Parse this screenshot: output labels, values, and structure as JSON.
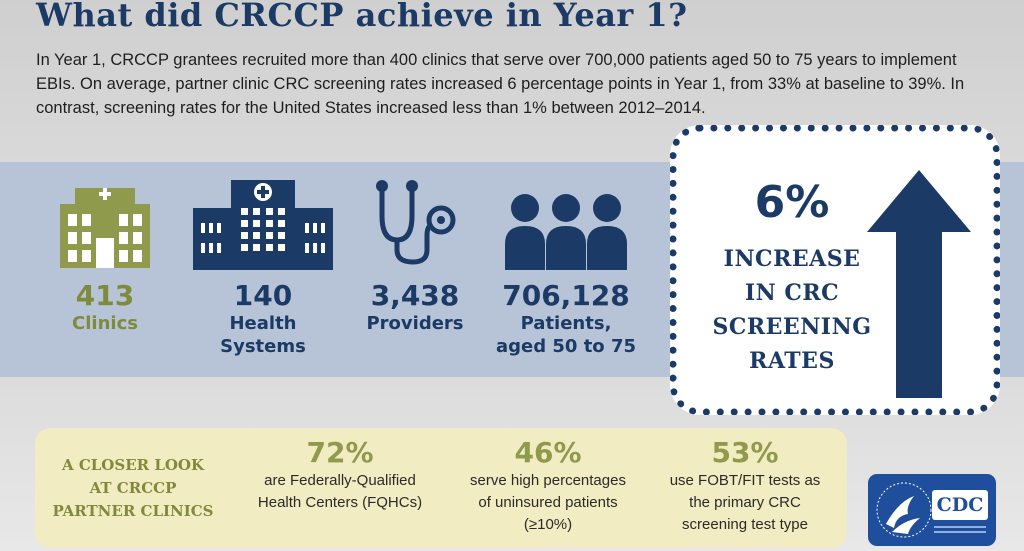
{
  "header": {
    "title": "What did CRCCP achieve in Year 1?",
    "intro": "In Year 1, CRCCP grantees recruited more than 400 clinics that serve over 700,000 patients aged 50 to 75 years to implement EBIs. On average, partner clinic CRC screening rates increased 6 percentage points in Year 1, from 33% at baseline to 39%. In contrast, screening rates for the United States increased less than 1% between 2012–2014."
  },
  "stats": [
    {
      "value": "413",
      "label": "Clinics",
      "icon": "clinic-building-icon"
    },
    {
      "value": "140",
      "label": "Health\nSystems",
      "icon": "hospital-icon"
    },
    {
      "value": "3,438",
      "label": "Providers",
      "icon": "stethoscope-icon"
    },
    {
      "value": "706,128",
      "label": "Patients,\naged 50 to 75",
      "icon": "people-icon"
    }
  ],
  "increase": {
    "value": "6%",
    "caption": "INCREASE\nIN CRC\nSCREENING\nRATES",
    "icon": "up-arrow-icon"
  },
  "closer_look": {
    "heading": "A CLOSER LOOK\nAT CRCCP\nPARTNER CLINICS",
    "facts": [
      {
        "value": "72%",
        "text": "are Federally-Qualified\nHealth Centers (FQHCs)"
      },
      {
        "value": "46%",
        "text": "serve high percentages\nof uninsured patients\n(≥10%)"
      },
      {
        "value": "53%",
        "text": "use FOBT/FIT tests as\nthe primary CRC\nscreening test type"
      }
    ]
  },
  "logo": {
    "text": "CDC",
    "icon": "hhs-eagle-icon"
  },
  "colors": {
    "navy": "#1b3a66",
    "olive": "#7f8a3a",
    "stats_band": "#b7c3d6",
    "closer_panel": "#f1ecc2",
    "logo_blue": "#1f4f9c"
  }
}
